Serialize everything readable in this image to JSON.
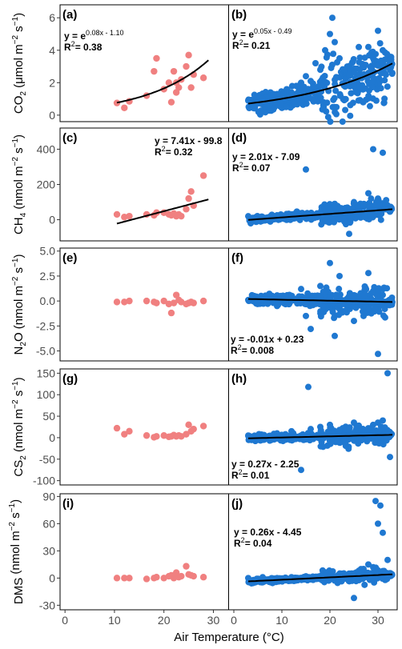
{
  "x_axis": {
    "label": "Air Temperature (°C)",
    "ticks": [
      0,
      10,
      20,
      30
    ],
    "left_range": [
      -1,
      33
    ],
    "right_range": [
      -1,
      34
    ]
  },
  "colors": {
    "left_points": "#f08080",
    "right_points": "#1f78d1",
    "fit": "#000000"
  },
  "rows": [
    {
      "id": "co2",
      "ylabel": {
        "main": "CO",
        "sub": "2",
        "unit": " (μmol m",
        "exp1": "−2",
        "mid": " s",
        "exp2": "−1",
        "end": ")"
      },
      "ylim": [
        -0.4,
        6.8
      ],
      "yticks": [
        0,
        2,
        4,
        6
      ]
    },
    {
      "id": "ch4",
      "ylabel": {
        "main": "CH",
        "sub": "4",
        "unit": " (nmol m",
        "exp1": "−2",
        "mid": " s",
        "exp2": "−1",
        "end": ")"
      },
      "ylim": [
        -120,
        520
      ],
      "yticks": [
        0,
        200,
        400
      ]
    },
    {
      "id": "n2o",
      "ylabel": {
        "main": "N",
        "sub": "2",
        "unit": "O (nmol m",
        "exp1": "−2",
        "mid": " s",
        "exp2": "−1",
        "end": ")"
      },
      "ylim": [
        -6.0,
        5.3
      ],
      "yticks": [
        -5.0,
        -2.5,
        0.0,
        2.5,
        5.0
      ],
      "ytick_labels": [
        "-5.0",
        "-2.5",
        "0.0",
        "2.5",
        "5.0"
      ]
    },
    {
      "id": "cs2",
      "ylabel": {
        "main": "CS",
        "sub": "2",
        "unit": " (nmol m",
        "exp1": "−2",
        "mid": " s",
        "exp2": "−1",
        "end": ")"
      },
      "ylim": [
        -110,
        160
      ],
      "yticks": [
        -100,
        -50,
        0,
        50,
        100,
        150
      ]
    },
    {
      "id": "dms",
      "ylabel": {
        "main": "DMS",
        "sub": "",
        "unit": " (nmol m",
        "exp1": "−2",
        "mid": " s",
        "exp2": "−1",
        "end": ")"
      },
      "ylim": [
        -35,
        93
      ],
      "yticks": [
        -30,
        0,
        30,
        60,
        90
      ]
    }
  ],
  "panels": [
    {
      "tag": "(a)",
      "eq_line": "y = e",
      "eq_exp": "0.08x - 1.10",
      "r2": "0.38",
      "fit": {
        "type": "exp",
        "a": 0.08,
        "b": -1.1,
        "x": [
          10.5,
          29
        ]
      }
    },
    {
      "tag": "(b)",
      "eq_line": "y = e",
      "eq_exp": "0.05x - 0.49",
      "r2": "0.21",
      "fit": {
        "type": "exp",
        "a": 0.05,
        "b": -0.49,
        "x": [
          3,
          33
        ]
      }
    },
    {
      "tag": "(c)",
      "eq_line": "y = 7.41x - 99.8",
      "eq_exp": "",
      "r2": "0.32",
      "fit": {
        "type": "lin",
        "a": 7.41,
        "b": -99.8,
        "x": [
          10.5,
          29
        ]
      }
    },
    {
      "tag": "(d)",
      "eq_line": "y = 2.01x - 7.09",
      "eq_exp": "",
      "r2": "0.07",
      "fit": {
        "type": "lin",
        "a": 2.01,
        "b": -7.09,
        "x": [
          3,
          33
        ]
      }
    },
    {
      "tag": "(e)",
      "eq_line": "",
      "eq_exp": "",
      "r2": "",
      "fit": null
    },
    {
      "tag": "(f)",
      "eq_line": "y = -0.01x + 0.23",
      "eq_exp": "",
      "r2": "0.008",
      "fit": {
        "type": "lin",
        "a": -0.01,
        "b": 0.23,
        "x": [
          3,
          33
        ]
      }
    },
    {
      "tag": "(g)",
      "eq_line": "",
      "eq_exp": "",
      "r2": "",
      "fit": null
    },
    {
      "tag": "(h)",
      "eq_line": "y = 0.27x - 2.25",
      "eq_exp": "",
      "r2": "0.01",
      "fit": {
        "type": "lin",
        "a": 0.27,
        "b": -2.25,
        "x": [
          3,
          33
        ]
      }
    },
    {
      "tag": "(i)",
      "eq_line": "",
      "eq_exp": "",
      "r2": "",
      "fit": null
    },
    {
      "tag": "(j)",
      "eq_line": "y = 0.26x - 4.45",
      "eq_exp": "",
      "r2": "0.04",
      "fit": {
        "type": "lin",
        "a": 0.26,
        "b": -4.45,
        "x": [
          3,
          33
        ]
      }
    }
  ],
  "chart_data": [
    {
      "type": "scatter",
      "panel": "(a)",
      "xlabel": "Air Temperature (°C)",
      "ylabel": "CO2 (μmol m-2 s-1)",
      "x": [
        10.5,
        12,
        13,
        16.5,
        18,
        18.5,
        20,
        21,
        21.5,
        22,
        22.5,
        22.5,
        23,
        23.5,
        24.5,
        25,
        25.5,
        26,
        28
      ],
      "y": [
        0.75,
        0.45,
        0.85,
        1.2,
        2.7,
        3.5,
        1.6,
        2.0,
        0.8,
        2.7,
        1.4,
        2.0,
        1.7,
        2.2,
        3.0,
        3.7,
        1.7,
        2.5,
        2.3
      ]
    },
    {
      "type": "scatter",
      "panel": "(b)",
      "xlabel": "Air Temperature (°C)",
      "ylabel": "CO2 (μmol m-2 s-1)",
      "n_points": "approx 500 (dense cloud, values summarised)",
      "x": [
        3,
        5,
        6,
        8,
        9,
        10,
        11,
        12,
        13,
        14,
        15,
        16,
        17,
        18,
        19,
        20,
        20.5,
        21,
        22,
        23,
        24,
        25,
        26,
        27,
        28,
        29,
        30,
        31,
        32,
        33
      ],
      "y": [
        0.9,
        0.8,
        1.0,
        1.1,
        1.3,
        1.2,
        1.6,
        1.4,
        1.8,
        2.0,
        2.4,
        2.1,
        3.2,
        2.8,
        4.0,
        5.0,
        6.0,
        4.5,
        3.5,
        2.8,
        2.5,
        2.0,
        2.4,
        3.0,
        4.2,
        3.5,
        5.2,
        4.0,
        3.0,
        2.6
      ]
    },
    {
      "type": "scatter",
      "panel": "(c)",
      "xlabel": "Air Temperature (°C)",
      "ylabel": "CH4 (nmol m-2 s-1)",
      "x": [
        10.5,
        12,
        13,
        16.5,
        18,
        18.5,
        20,
        21,
        21.5,
        22,
        22.5,
        23,
        23.5,
        24.5,
        25,
        25.5,
        26,
        28
      ],
      "y": [
        30,
        15,
        20,
        30,
        25,
        40,
        40,
        30,
        25,
        35,
        20,
        30,
        20,
        60,
        120,
        160,
        80,
        250
      ]
    },
    {
      "type": "scatter",
      "panel": "(d)",
      "xlabel": "Air Temperature (°C)",
      "ylabel": "CH4 (nmol m-2 s-1)",
      "x": [
        3,
        6,
        9,
        12,
        15,
        15.5,
        18,
        20,
        21,
        22,
        24,
        25,
        26,
        27,
        28,
        29,
        30,
        31,
        32
      ],
      "y": [
        20,
        15,
        25,
        20,
        285,
        30,
        40,
        60,
        90,
        30,
        -80,
        100,
        70,
        80,
        150,
        400,
        120,
        380,
        60
      ]
    },
    {
      "type": "scatter",
      "panel": "(e)",
      "xlabel": "Air Temperature (°C)",
      "ylabel": "N2O (nmol m-2 s-1)",
      "x": [
        10.5,
        12,
        13,
        16.5,
        18,
        18.5,
        20,
        21,
        21.5,
        22,
        22.5,
        23,
        23.5,
        24.5,
        25,
        25.5,
        26,
        28
      ],
      "y": [
        -0.1,
        -0.1,
        0.0,
        0.0,
        -0.1,
        -0.2,
        0.0,
        -0.3,
        -1.2,
        -0.2,
        0.6,
        0.1,
        -0.1,
        -0.3,
        -0.2,
        -0.1,
        -0.2,
        0.0
      ]
    },
    {
      "type": "scatter",
      "panel": "(f)",
      "xlabel": "Air Temperature (°C)",
      "ylabel": "N2O (nmol m-2 s-1)",
      "x": [
        3,
        6,
        9,
        12,
        14,
        15,
        16,
        18,
        20,
        21,
        22,
        23,
        24,
        25,
        27,
        28,
        29,
        30,
        31,
        32
      ],
      "y": [
        0.1,
        0.2,
        -0.5,
        0.5,
        1.2,
        -1.5,
        -2.8,
        1.5,
        3.8,
        -3.5,
        2.5,
        -1.0,
        0.5,
        -2.0,
        -1.5,
        2.8,
        1.0,
        -5.3,
        0.6,
        -0.3
      ]
    },
    {
      "type": "scatter",
      "panel": "(g)",
      "xlabel": "Air Temperature (°C)",
      "ylabel": "CS2 (nmol m-2 s-1)",
      "x": [
        10.5,
        12,
        13,
        16.5,
        18,
        18.5,
        20,
        21,
        21.5,
        22,
        22.5,
        23,
        23.5,
        24.5,
        25,
        25.5,
        26,
        28
      ],
      "y": [
        22,
        8,
        15,
        5,
        1,
        3,
        5,
        2,
        3,
        6,
        3,
        5,
        3,
        8,
        30,
        15,
        20,
        27
      ]
    },
    {
      "type": "scatter",
      "panel": "(h)",
      "xlabel": "Air Temperature (°C)",
      "ylabel": "CS2 (nmol m-2 s-1)",
      "x": [
        3,
        6,
        9,
        12,
        14,
        15.5,
        16,
        18,
        20,
        22,
        24,
        25,
        26,
        28,
        29,
        30,
        31,
        32,
        32.5
      ],
      "y": [
        5,
        -5,
        10,
        15,
        -75,
        118,
        20,
        25,
        30,
        18,
        20,
        35,
        28,
        22,
        30,
        35,
        40,
        150,
        -45
      ]
    },
    {
      "type": "scatter",
      "panel": "(i)",
      "xlabel": "Air Temperature (°C)",
      "ylabel": "DMS (nmol m-2 s-1)",
      "x": [
        10.5,
        12,
        13,
        16.5,
        18,
        18.5,
        20,
        21,
        21.5,
        22,
        22.5,
        23,
        23.5,
        24.5,
        25,
        25.5,
        26,
        28
      ],
      "y": [
        0,
        0,
        0,
        -1,
        0,
        1,
        0,
        2,
        3,
        0,
        6,
        1,
        2,
        13,
        4,
        3,
        2,
        1
      ]
    },
    {
      "type": "scatter",
      "panel": "(j)",
      "xlabel": "Air Temperature (°C)",
      "ylabel": "DMS (nmol m-2 s-1)",
      "x": [
        3,
        6,
        9,
        12,
        15,
        18,
        20,
        22,
        24,
        25,
        26,
        27,
        28,
        29,
        29.5,
        30,
        30.5,
        31,
        32
      ],
      "y": [
        0,
        1,
        0,
        1,
        2,
        1,
        2,
        3,
        5,
        -22,
        8,
        10,
        15,
        12,
        85,
        60,
        80,
        50,
        20
      ]
    }
  ]
}
